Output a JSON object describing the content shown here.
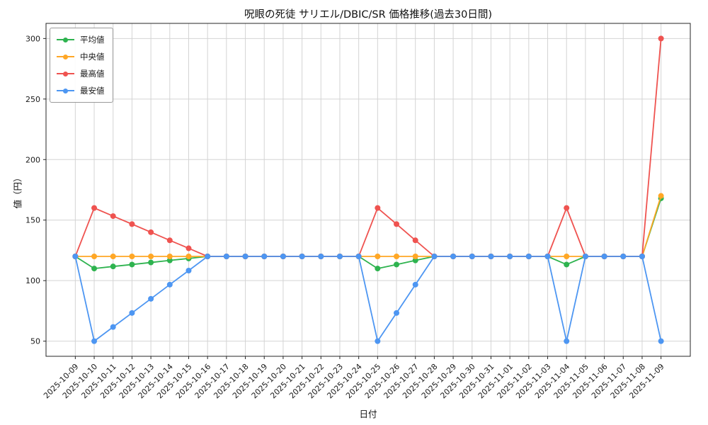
{
  "chart_data": {
    "type": "line",
    "title": "呪眼の死徒 サリエル/DBIC/SR 価格推移(過去30日間)",
    "xlabel": "日付",
    "ylabel": "値（円）",
    "x": [
      "2025-10-09",
      "2025-10-10",
      "2025-10-11",
      "2025-10-12",
      "2025-10-13",
      "2025-10-14",
      "2025-10-15",
      "2025-10-16",
      "2025-10-17",
      "2025-10-18",
      "2025-10-19",
      "2025-10-20",
      "2025-10-21",
      "2025-10-22",
      "2025-10-23",
      "2025-10-24",
      "2025-10-25",
      "2025-10-26",
      "2025-10-27",
      "2025-10-28",
      "2025-10-29",
      "2025-10-30",
      "2025-10-31",
      "2025-11-01",
      "2025-11-02",
      "2025-11-03",
      "2025-11-04",
      "2025-11-05",
      "2025-11-06",
      "2025-11-07",
      "2025-11-08",
      "2025-11-09"
    ],
    "series": [
      {
        "key": "average",
        "name": "平均値",
        "color": "#2eb34f",
        "values": [
          120,
          110,
          111.7,
          113.3,
          115,
          116.7,
          118.3,
          120,
          120,
          120,
          120,
          120,
          120,
          120,
          120,
          120,
          110,
          113.3,
          116.7,
          120,
          120,
          120,
          120,
          120,
          120,
          120,
          113.3,
          120,
          120,
          120,
          120,
          168
        ]
      },
      {
        "key": "median",
        "name": "中央値",
        "color": "#ffa726",
        "values": [
          120,
          120,
          120,
          120,
          120,
          120,
          120,
          120,
          120,
          120,
          120,
          120,
          120,
          120,
          120,
          120,
          120,
          120,
          120,
          120,
          120,
          120,
          120,
          120,
          120,
          120,
          120,
          120,
          120,
          120,
          120,
          170
        ]
      },
      {
        "key": "max",
        "name": "最高値",
        "color": "#ef5350",
        "values": [
          120,
          160,
          153.3,
          146.7,
          140,
          133.3,
          126.7,
          120,
          120,
          120,
          120,
          120,
          120,
          120,
          120,
          120,
          160,
          146.7,
          133.3,
          120,
          120,
          120,
          120,
          120,
          120,
          120,
          160,
          120,
          120,
          120,
          120,
          300
        ]
      },
      {
        "key": "min",
        "name": "最安値",
        "color": "#4d96f2",
        "values": [
          120,
          50,
          61.7,
          73.3,
          85,
          96.7,
          108.3,
          120,
          120,
          120,
          120,
          120,
          120,
          120,
          120,
          120,
          50,
          73.3,
          96.7,
          120,
          120,
          120,
          120,
          120,
          120,
          120,
          50,
          120,
          120,
          120,
          120,
          50
        ]
      }
    ],
    "yticks": [
      50,
      100,
      150,
      200,
      250,
      300
    ],
    "ylim": [
      37.5,
      312.5
    ],
    "grid": true,
    "legend_position": "upper left",
    "marker": "circle"
  }
}
